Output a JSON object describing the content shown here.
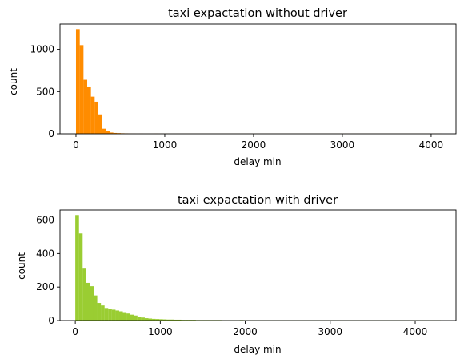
{
  "chart_data": [
    {
      "type": "bar",
      "title": "taxi expactation without driver",
      "xlabel": "delay min",
      "ylabel": "count",
      "xlim": [
        -180,
        4280
      ],
      "ylim": [
        0,
        1300
      ],
      "xticks": [
        0,
        1000,
        2000,
        3000,
        4000
      ],
      "yticks": [
        0,
        500,
        1000
      ],
      "color": "#ff8c00",
      "bin_width": 42,
      "bin_start": 0,
      "values": [
        1240,
        1050,
        640,
        560,
        440,
        380,
        230,
        60,
        30,
        15,
        10,
        8,
        6,
        5,
        4,
        3,
        2,
        3,
        2,
        2,
        2,
        3,
        2,
        2,
        2,
        2,
        2,
        2,
        2,
        2,
        2,
        2,
        2,
        2,
        2,
        2,
        2,
        2,
        2,
        2,
        2,
        2,
        2,
        2,
        2,
        2,
        2,
        2,
        2,
        2,
        2,
        2,
        2,
        2,
        2,
        2,
        2,
        2,
        2,
        2,
        2,
        2,
        2,
        2,
        2,
        2,
        2,
        2,
        2,
        2,
        2,
        2,
        2,
        2,
        2,
        2,
        2,
        2,
        2,
        2,
        2,
        2,
        2,
        2,
        2,
        2,
        2,
        2,
        2,
        2,
        2,
        2,
        2,
        2,
        2,
        2,
        2,
        2
      ],
      "grid": false
    },
    {
      "type": "bar",
      "title": "taxi expactation with driver",
      "xlabel": "delay min",
      "ylabel": "count",
      "xlim": [
        -180,
        4480
      ],
      "ylim": [
        0,
        660
      ],
      "xticks": [
        0,
        1000,
        2000,
        3000,
        4000
      ],
      "yticks": [
        0,
        200,
        400,
        600
      ],
      "color": "#9acd32",
      "bin_width": 43,
      "bin_start": 0,
      "values": [
        630,
        520,
        310,
        225,
        205,
        150,
        105,
        90,
        75,
        70,
        65,
        60,
        55,
        50,
        42,
        35,
        30,
        22,
        18,
        14,
        12,
        10,
        9,
        8,
        7,
        6,
        6,
        5,
        5,
        4,
        4,
        4,
        4,
        3,
        3,
        3,
        3,
        3,
        3,
        3,
        2,
        2,
        2,
        2,
        2,
        3,
        2,
        2,
        2,
        2,
        2,
        2,
        2,
        2,
        2,
        2,
        2,
        2,
        2,
        2,
        2,
        2,
        2,
        2,
        2,
        2,
        2,
        2,
        2,
        2,
        2,
        2,
        2,
        2,
        2,
        2,
        2,
        2,
        2,
        2,
        2,
        2,
        2,
        2,
        2,
        2,
        2,
        2,
        2,
        2,
        2,
        2,
        2,
        2,
        2,
        2,
        2,
        2,
        2,
        2
      ],
      "grid": false
    }
  ]
}
